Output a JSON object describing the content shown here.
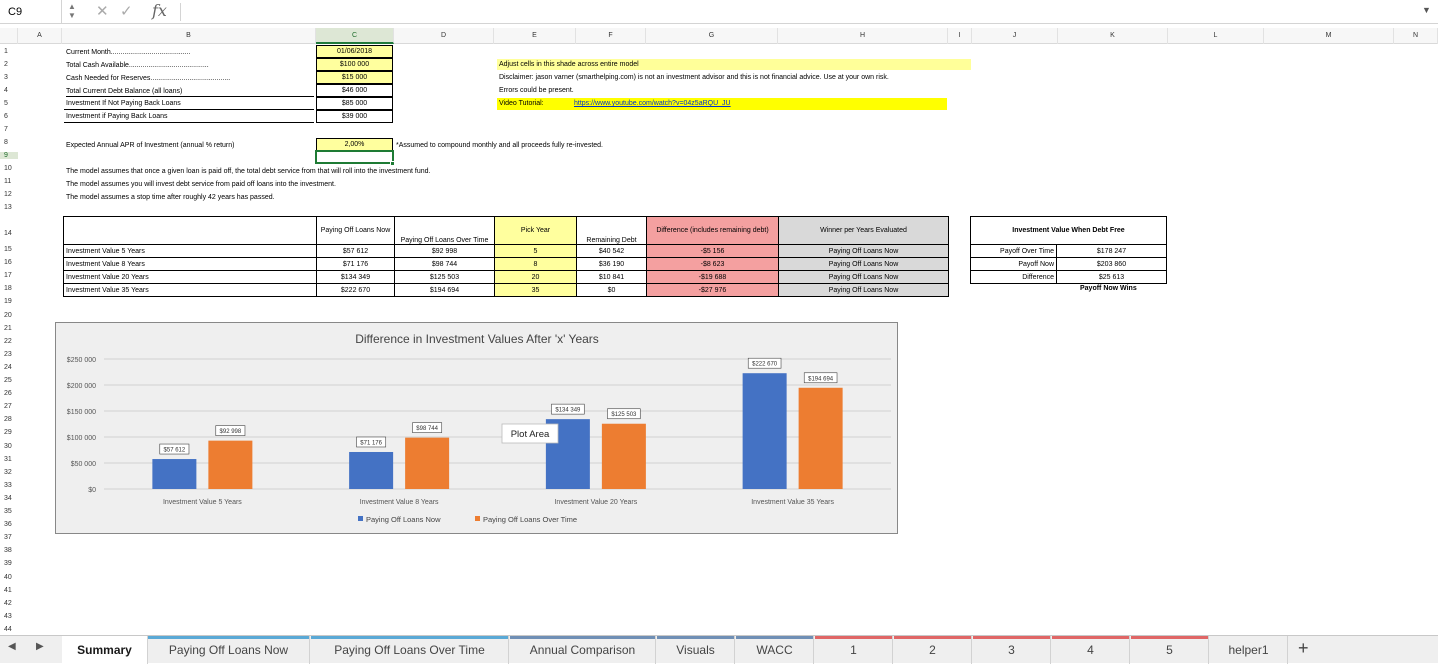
{
  "formula_bar": {
    "name_box": "C9",
    "fx": "fx",
    "nav": "▲▼",
    "cancel": "✕",
    "enter": "✓",
    "expand": "▼"
  },
  "columns": [
    "A",
    "B",
    "C",
    "D",
    "E",
    "F",
    "G",
    "H",
    "I",
    "J",
    "K",
    "L",
    "M",
    "N"
  ],
  "rows": [
    "1",
    "2",
    "3",
    "4",
    "5",
    "6",
    "7",
    "8",
    "9",
    "10",
    "11",
    "12",
    "13",
    "14",
    "15",
    "16",
    "17",
    "18",
    "19",
    "20",
    "21",
    "22",
    "23",
    "24",
    "25",
    "26",
    "27",
    "28",
    "29",
    "30",
    "31",
    "32",
    "33",
    "34",
    "35",
    "36",
    "37",
    "38",
    "39",
    "40",
    "41",
    "42",
    "43",
    "44"
  ],
  "inputs": {
    "labels": [
      "Current Month.........................................",
      "Total Cash Available.........................................",
      "Cash Needed for Reserves.........................................",
      "Total Current Debt Balance (all loans)",
      "Investment If Not Paying Back Loans",
      "Investment if Paying Back Loans"
    ],
    "values": [
      "01/06/2018",
      "$100 000",
      "$15 000",
      "$46 000",
      "$85 000",
      "$39 000"
    ]
  },
  "notes": {
    "adjust": "Adjust cells in this shade across entire model",
    "disclaimer": "Disclaimer: jason varner (smarthelping.com) is not an investment advisor and this is not financial advice. Use at your own risk.",
    "errors": "Errors could be present.",
    "video_label": "Video Tutorial:",
    "video_link": "https://www.youtube.com/watch?v=04z5aRQU_JU"
  },
  "apr": {
    "label": "Expected Annual APR of Investment (annual % return)",
    "value": "2,00%",
    "note": "*Assumed to compound monthly and all proceeds fully re-invested."
  },
  "assumptions": [
    "The model assumes that once a given loan is paid off, the total debt service from that will roll into the investment fund.",
    "The model assumes you will invest debt service from paid off loans into the investment.",
    "The model assumes a stop time after roughly 42 years has passed."
  ],
  "table": {
    "headers": [
      "Paying Off Loans Now",
      "Paying Off Loans Over Time",
      "Pick Year",
      "Remaining Debt",
      "Difference (includes remaining debt)",
      "Winner per Years Evaluated"
    ],
    "rows": [
      [
        "Investment Value 5 Years",
        "$57 612",
        "$92 998",
        "5",
        "$40 542",
        "-$5 156",
        "Paying Off Loans Now"
      ],
      [
        "Investment Value 8 Years",
        "$71 176",
        "$98 744",
        "8",
        "$36 190",
        "-$8 623",
        "Paying Off Loans Now"
      ],
      [
        "Investment Value 20 Years",
        "$134 349",
        "$125 503",
        "20",
        "$10 841",
        "-$19 688",
        "Paying Off Loans Now"
      ],
      [
        "Investment Value 35 Years",
        "$222 670",
        "$194 694",
        "35",
        "$0",
        "-$27 976",
        "Paying Off Loans Now"
      ]
    ]
  },
  "summary": {
    "title": "Investment Value When Debt Free",
    "rows": [
      [
        "Payoff Over Time",
        "$178 247"
      ],
      [
        "Payoff Now",
        "$203 860"
      ],
      [
        "Difference",
        "$25 613"
      ]
    ],
    "result": "Payoff Now Wins"
  },
  "chart_data": {
    "type": "bar",
    "title": "Difference in Investment Values After 'x' Years",
    "categories": [
      "Investment Value 5 Years",
      "Investment Value 8 Years",
      "Investment Value 20 Years",
      "Investment Value 35 Years"
    ],
    "series": [
      {
        "name": "Paying Off Loans Now",
        "values": [
          57612,
          71176,
          134349,
          222670
        ],
        "labels": [
          "$57 612",
          "$71 176",
          "$134 349",
          "$222 670"
        ],
        "color": "#4472c4"
      },
      {
        "name": "Paying Off Loans Over Time",
        "values": [
          92998,
          98744,
          125503,
          194694
        ],
        "labels": [
          "$92 998",
          "$98 744",
          "$125 503",
          "$194 694"
        ],
        "color": "#ed7d31"
      }
    ],
    "yticks": [
      "$0",
      "$50 000",
      "$100 000",
      "$150 000",
      "$200 000",
      "$250 000"
    ],
    "ylim": [
      0,
      250000
    ],
    "grid": true,
    "legend": "bottom",
    "tooltip": "Plot Area"
  },
  "tabs": [
    {
      "label": "Summary",
      "color": ""
    },
    {
      "label": "Paying Off Loans Now",
      "color": "#5aa9d6"
    },
    {
      "label": "Paying Off Loans Over Time",
      "color": "#5aa9d6"
    },
    {
      "label": "Annual Comparison",
      "color": "#6f8fb5"
    },
    {
      "label": "Visuals",
      "color": "#6f8fb5"
    },
    {
      "label": "WACC",
      "color": "#6f8fb5"
    },
    {
      "label": "1",
      "color": "#e06666"
    },
    {
      "label": "2",
      "color": "#e06666"
    },
    {
      "label": "3",
      "color": "#e06666"
    },
    {
      "label": "4",
      "color": "#e06666"
    },
    {
      "label": "5",
      "color": "#e06666"
    },
    {
      "label": "helper1",
      "color": ""
    }
  ],
  "tab_nav": {
    "prev": "◀",
    "next": "▶",
    "add": "+"
  }
}
